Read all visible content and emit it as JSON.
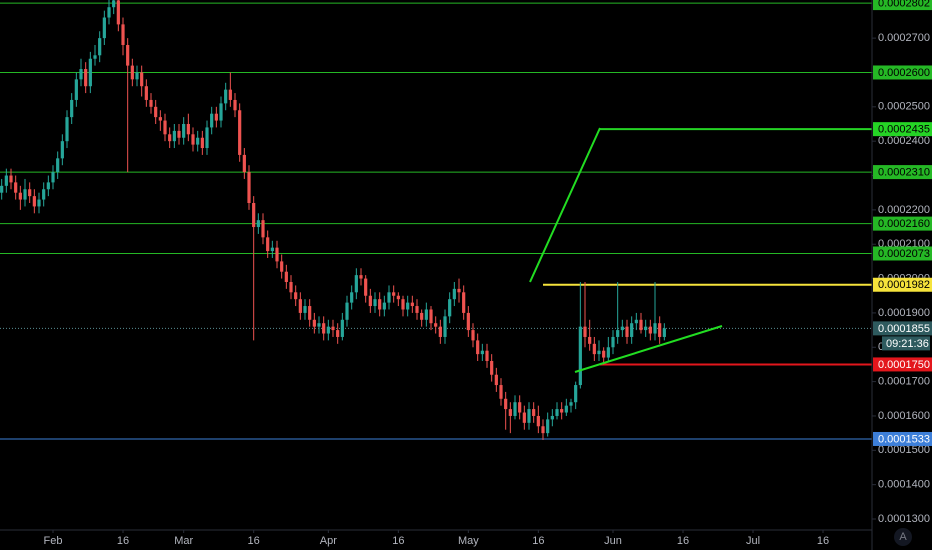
{
  "chart_data": {
    "type": "candlestick",
    "up_color": "#26a69a",
    "down_color": "#ef5350",
    "xlim": [
      -11.36,
      175.5
    ],
    "ylim": [
      0.0001268,
      0.0002811
    ],
    "xticks": [
      {
        "value": 0,
        "label": "Feb"
      },
      {
        "value": 15,
        "label": "16"
      },
      {
        "value": 28,
        "label": "Mar"
      },
      {
        "value": 43,
        "label": "16"
      },
      {
        "value": 59,
        "label": "Apr"
      },
      {
        "value": 74,
        "label": "16"
      },
      {
        "value": 89,
        "label": "May"
      },
      {
        "value": 104,
        "label": "16"
      },
      {
        "value": 120,
        "label": "Jun"
      },
      {
        "value": 135,
        "label": "16"
      },
      {
        "value": 150,
        "label": "Jul"
      },
      {
        "value": 165,
        "label": "16"
      }
    ],
    "yticks": [
      {
        "value": 0.00013,
        "label": "0.0001300"
      },
      {
        "value": 0.00014,
        "label": "0.0001400"
      },
      {
        "value": 0.00015,
        "label": "0.0001500"
      },
      {
        "value": 0.00016,
        "label": "0.0001600"
      },
      {
        "value": 0.00017,
        "label": "0.0001700"
      },
      {
        "value": 0.00018,
        "label": "0.0001800"
      },
      {
        "value": 0.00019,
        "label": "0.0001900"
      },
      {
        "value": 0.0002,
        "label": "0.0002000"
      },
      {
        "value": 0.00021,
        "label": "0.0002100"
      },
      {
        "value": 0.00022,
        "label": "0.0002200"
      },
      {
        "value": 0.00023,
        "label": "0.0002300"
      },
      {
        "value": 0.00024,
        "label": "0.0002400"
      },
      {
        "value": 0.00025,
        "label": "0.0002500"
      },
      {
        "value": 0.00026,
        "label": "0.0002600"
      },
      {
        "value": 0.00027,
        "label": "0.0002700"
      }
    ],
    "levels": [
      {
        "value": 0.0002802,
        "label": "0.0002802",
        "color": "#25b825",
        "text_color": "#000000"
      },
      {
        "value": 0.00026,
        "label": "0.0002600",
        "color": "#25b825",
        "text_color": "#000000"
      },
      {
        "value": 0.0002435,
        "label": "0.0002435",
        "color": "#25d425",
        "text_color": "#000000"
      },
      {
        "value": 0.000231,
        "label": "0.0002310",
        "color": "#25b825",
        "text_color": "#000000"
      },
      {
        "value": 0.000216,
        "label": "0.0002160",
        "color": "#25b825",
        "text_color": "#000000"
      },
      {
        "value": 0.0002073,
        "label": "0.0002073",
        "color": "#25b825",
        "text_color": "#000000"
      },
      {
        "value": 0.0001982,
        "label": "0.0001982",
        "color": "#f5e33b",
        "text_color": "#000000"
      },
      {
        "value": 0.0001855,
        "label": "0.0001855",
        "color": "#2e5a5e",
        "text_color": "#ffffff",
        "style": "dotted"
      },
      {
        "value": 0.000175,
        "label": "0.0001750",
        "color": "#e3161c",
        "text_color": "#ffffff"
      },
      {
        "value": 0.0001533,
        "label": "0.0001533",
        "color": "#3d7fd9",
        "text_color": "#ffffff"
      }
    ],
    "countdown": "09:21:36",
    "scale_button": "A",
    "x": [
      -11,
      -10,
      -9,
      -8,
      -7,
      -6,
      -5,
      -4,
      -3,
      -2,
      -1,
      0,
      1,
      2,
      3,
      4,
      5,
      6,
      7,
      8,
      9,
      10,
      11,
      12,
      13,
      14,
      15,
      16,
      17,
      18,
      19,
      20,
      21,
      22,
      23,
      24,
      25,
      26,
      27,
      28,
      29,
      30,
      31,
      32,
      33,
      34,
      35,
      36,
      37,
      38,
      39,
      40,
      41,
      42,
      43,
      44,
      45,
      46,
      47,
      48,
      49,
      50,
      51,
      52,
      53,
      54,
      55,
      56,
      57,
      58,
      59,
      60,
      61,
      62,
      63,
      64,
      65,
      66,
      67,
      68,
      69,
      70,
      71,
      72,
      73,
      74,
      75,
      76,
      77,
      78,
      79,
      80,
      81,
      82,
      83,
      84,
      85,
      86,
      87,
      88,
      89,
      90,
      91,
      92,
      93,
      94,
      95,
      96,
      97,
      98,
      99,
      100,
      101,
      102,
      103,
      104,
      105,
      106,
      107,
      108,
      109,
      110,
      111,
      112,
      113,
      114,
      115,
      116,
      117,
      118,
      119,
      120,
      121,
      122,
      123,
      124,
      125,
      126,
      127,
      128,
      129,
      130,
      131
    ],
    "open": [
      0.000225,
      0.000227,
      0.00023,
      0.000228,
      0.000225,
      0.000223,
      0.000226,
      0.000224,
      0.000221,
      0.000223,
      0.000226,
      0.000228,
      0.000231,
      0.000235,
      0.00024,
      0.000247,
      0.000252,
      0.000258,
      0.000261,
      0.000256,
      0.000264,
      0.000265,
      0.00027,
      0.000276,
      0.000279,
      0.000281,
      0.000274,
      0.000268,
      0.000262,
      0.000258,
      0.00026,
      0.000256,
      0.000252,
      0.00025,
      0.000247,
      0.000246,
      0.000242,
      0.00024,
      0.000243,
      0.000241,
      0.000245,
      0.000242,
      0.000239,
      0.000241,
      0.000238,
      0.000244,
      0.000248,
      0.000246,
      0.000251,
      0.000255,
      0.000252,
      0.000249,
      0.000236,
      0.000231,
      0.000222,
      0.000215,
      0.000217,
      0.000212,
      0.000208,
      0.000209,
      0.000205,
      0.000202,
      0.000199,
      0.000196,
      0.000194,
      0.00019,
      0.000192,
      0.000188,
      0.000186,
      0.000187,
      0.000184,
      0.000186,
      0.000185,
      0.000183,
      0.000188,
      0.000193,
      0.000196,
      0.000201,
      0.0002,
      0.000195,
      0.000192,
      0.000194,
      0.000191,
      0.000193,
      0.000196,
      0.000195,
      0.000194,
      0.000191,
      0.000193,
      0.000192,
      0.00019,
      0.000188,
      0.000191,
      0.000187,
      0.000186,
      0.000183,
      0.000189,
      0.000194,
      0.000197,
      0.000196,
      0.00019,
      0.000185,
      0.000182,
      0.000178,
      0.000179,
      0.000176,
      0.000172,
      0.000169,
      0.000165,
      0.000162,
      0.00016,
      0.000164,
      0.000161,
      0.000158,
      0.000162,
      0.00016,
      0.000157,
      0.000155,
      0.000159,
      0.00016,
      0.000162,
      0.000161,
      0.000163,
      0.000164,
      0.000169,
      0.000186,
      0.000183,
      0.000181,
      0.000178,
      0.000179,
      0.000177,
      0.00018,
      0.000183,
      0.000185,
      0.000186,
      0.000183,
      0.000187,
      0.000188,
      0.000185,
      0.000186,
      0.000184,
      0.000187,
      0.000183
    ],
    "high": [
      0.000229,
      0.000232,
      0.000232,
      0.00023,
      0.000227,
      0.000229,
      0.000228,
      0.000226,
      0.000225,
      0.000228,
      0.00023,
      0.000233,
      0.000237,
      0.000242,
      0.000249,
      0.000254,
      0.00026,
      0.000264,
      0.000263,
      0.000266,
      0.000268,
      0.000272,
      0.000278,
      0.000282,
      0.000285,
      0.000283,
      0.000276,
      0.00027,
      0.000264,
      0.000262,
      0.000262,
      0.000258,
      0.000254,
      0.000252,
      0.000249,
      0.000248,
      0.000244,
      0.000245,
      0.000245,
      0.000247,
      0.000248,
      0.000244,
      0.000243,
      0.000243,
      0.000246,
      0.00025,
      0.00025,
      0.000253,
      0.000257,
      0.00026,
      0.000254,
      0.000251,
      0.000238,
      0.000233,
      0.000224,
      0.000219,
      0.000219,
      0.000214,
      0.000211,
      0.000211,
      0.000207,
      0.000204,
      0.000201,
      0.000198,
      0.000196,
      0.000194,
      0.000194,
      0.00019,
      0.000189,
      0.000189,
      0.000188,
      0.000188,
      0.000187,
      0.00019,
      0.000195,
      0.000198,
      0.000203,
      0.000203,
      0.000201,
      0.000197,
      0.000196,
      0.000196,
      0.000195,
      0.000198,
      0.000198,
      0.000196,
      0.000195,
      0.000195,
      0.000195,
      0.000194,
      0.000191,
      0.000193,
      0.000192,
      0.000189,
      0.000188,
      0.000191,
      0.000196,
      0.000199,
      0.0002,
      0.000198,
      0.000192,
      0.000187,
      0.000184,
      0.000181,
      0.000181,
      0.000178,
      0.000174,
      0.000171,
      0.000167,
      0.000164,
      0.000166,
      0.000166,
      0.000163,
      0.000164,
      0.000164,
      0.000163,
      0.000159,
      0.000161,
      0.000162,
      0.000164,
      0.000164,
      0.000165,
      0.000165,
      0.00017,
      0.000199,
      0.000199,
      0.000188,
      0.000183,
      0.000182,
      0.00018,
      0.000183,
      0.000185,
      0.000199,
      0.000188,
      0.000188,
      0.000189,
      0.00019,
      0.00019,
      0.000188,
      0.000188,
      0.000199,
      0.000189,
      0.000187
    ],
    "low": [
      0.000223,
      0.000225,
      0.000226,
      0.000223,
      0.00022,
      0.000221,
      0.000222,
      0.000219,
      0.000219,
      0.000221,
      0.000224,
      0.000226,
      0.000229,
      0.000233,
      0.000238,
      0.000245,
      0.00025,
      0.000256,
      0.000254,
      0.000254,
      0.000262,
      0.000263,
      0.000268,
      0.000274,
      0.000277,
      0.000272,
      0.000265,
      0.000231,
      0.000256,
      0.000256,
      0.000253,
      0.00025,
      0.000248,
      0.000245,
      0.000243,
      0.00024,
      0.000238,
      0.000238,
      0.000239,
      0.000239,
      0.00024,
      0.000237,
      0.000237,
      0.000236,
      0.000236,
      0.000242,
      0.000244,
      0.000244,
      0.000249,
      0.00025,
      0.000247,
      0.000234,
      0.000229,
      0.00022,
      0.000182,
      0.000213,
      0.00021,
      0.000206,
      0.000206,
      0.000203,
      0.0002,
      0.000197,
      0.000194,
      0.000192,
      0.000188,
      0.000188,
      0.000186,
      0.000184,
      0.000184,
      0.000182,
      0.000182,
      0.000183,
      0.000181,
      0.000182,
      0.000186,
      0.000191,
      0.000194,
      0.000198,
      0.000193,
      0.00019,
      0.00019,
      0.000189,
      0.000189,
      0.000191,
      0.000193,
      0.000192,
      0.000189,
      0.000189,
      0.00019,
      0.000188,
      0.000186,
      0.000186,
      0.000185,
      0.000184,
      0.000181,
      0.000181,
      0.000187,
      0.000192,
      0.000193,
      0.000188,
      0.000183,
      0.00018,
      0.000176,
      0.000176,
      0.000174,
      0.00017,
      0.000167,
      0.000163,
      0.000156,
      0.000155,
      0.000159,
      0.000159,
      0.000156,
      0.000156,
      0.000158,
      0.000155,
      0.000153,
      0.000154,
      0.000157,
      0.000159,
      0.000159,
      0.00016,
      0.000161,
      0.000162,
      0.000168,
      0.00018,
      0.000179,
      0.000176,
      0.000176,
      0.000175,
      0.000176,
      0.000178,
      0.000181,
      0.000183,
      0.000181,
      0.000181,
      0.000185,
      0.000184,
      0.000183,
      0.000182,
      0.000182,
      0.000181,
      0.000182
    ],
    "close": [
      0.000227,
      0.00023,
      0.000228,
      0.000225,
      0.000223,
      0.000226,
      0.000224,
      0.000221,
      0.000223,
      0.000226,
      0.000228,
      0.000231,
      0.000235,
      0.00024,
      0.000247,
      0.000252,
      0.000258,
      0.000261,
      0.000256,
      0.000264,
      0.000265,
      0.00027,
      0.000276,
      0.000279,
      0.000281,
      0.000274,
      0.000268,
      0.000262,
      0.000258,
      0.00026,
      0.000256,
      0.000252,
      0.00025,
      0.000247,
      0.000246,
      0.000242,
      0.00024,
      0.000243,
      0.000241,
      0.000245,
      0.000242,
      0.000239,
      0.000241,
      0.000238,
      0.000244,
      0.000248,
      0.000246,
      0.000251,
      0.000255,
      0.000252,
      0.000249,
      0.000236,
      0.000231,
      0.000222,
      0.000215,
      0.000217,
      0.000212,
      0.000208,
      0.000209,
      0.000205,
      0.000202,
      0.000199,
      0.000196,
      0.000194,
      0.00019,
      0.000192,
      0.000188,
      0.000186,
      0.000187,
      0.000184,
      0.000186,
      0.000185,
      0.000183,
      0.000188,
      0.000193,
      0.000196,
      0.000201,
      0.0002,
      0.000195,
      0.000192,
      0.000194,
      0.000191,
      0.000193,
      0.000196,
      0.000195,
      0.000194,
      0.000191,
      0.000193,
      0.000192,
      0.00019,
      0.000188,
      0.000191,
      0.000187,
      0.000186,
      0.000183,
      0.000189,
      0.000194,
      0.000197,
      0.000196,
      0.00019,
      0.000185,
      0.000182,
      0.000178,
      0.000179,
      0.000176,
      0.000172,
      0.000169,
      0.000165,
      0.000162,
      0.00016,
      0.000164,
      0.000161,
      0.000158,
      0.000162,
      0.00016,
      0.000157,
      0.000155,
      0.000159,
      0.00016,
      0.000162,
      0.000161,
      0.000163,
      0.000164,
      0.000169,
      0.000186,
      0.000183,
      0.000181,
      0.000178,
      0.000179,
      0.000177,
      0.00018,
      0.000183,
      0.000185,
      0.000186,
      0.000183,
      0.000187,
      0.000188,
      0.000185,
      0.000186,
      0.000184,
      0.000187,
      0.000183,
      0.0001855
    ]
  }
}
